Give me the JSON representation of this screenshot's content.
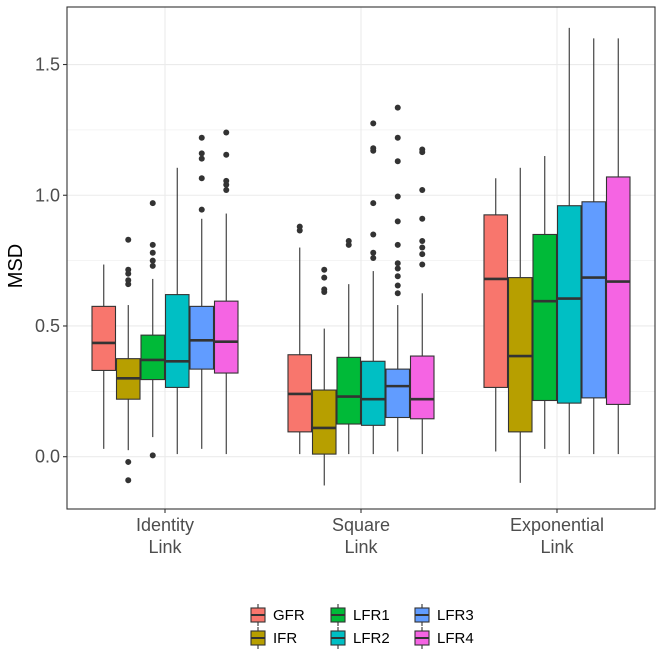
{
  "chart_data": {
    "type": "boxplot",
    "title": "",
    "xlabel": "",
    "ylabel": "MSD",
    "ylim": [
      -0.2,
      1.72
    ],
    "yticks": [
      0.0,
      0.5,
      1.0,
      1.5
    ],
    "ytick_labels": [
      "0.0",
      "0.5",
      "1.0",
      "1.5"
    ],
    "grid": true,
    "legend_position": "bottom",
    "categories": [
      {
        "line1": "Identity",
        "line2": "Link"
      },
      {
        "line1": "Square",
        "line2": "Link"
      },
      {
        "line1": "Exponential",
        "line2": "Link"
      }
    ],
    "series": [
      {
        "name": "GFR",
        "color": "#F8766D",
        "boxes": [
          {
            "whisker_low": 0.03,
            "q1": 0.33,
            "median": 0.435,
            "q3": 0.575,
            "whisker_high": 0.735,
            "outliers": []
          },
          {
            "whisker_low": 0.01,
            "q1": 0.095,
            "median": 0.24,
            "q3": 0.39,
            "whisker_high": 0.8,
            "outliers": [
              0.865,
              0.88
            ]
          },
          {
            "whisker_low": 0.02,
            "q1": 0.265,
            "median": 0.68,
            "q3": 0.925,
            "whisker_high": 1.065,
            "outliers": []
          }
        ]
      },
      {
        "name": "IFR",
        "color": "#B79F00",
        "boxes": [
          {
            "whisker_low": 0.025,
            "q1": 0.22,
            "median": 0.3,
            "q3": 0.375,
            "whisker_high": 0.58,
            "outliers": [
              -0.09,
              -0.02,
              0.66,
              0.675,
              0.7,
              0.715,
              0.83
            ]
          },
          {
            "whisker_low": -0.11,
            "q1": 0.01,
            "median": 0.11,
            "q3": 0.255,
            "whisker_high": 0.49,
            "outliers": [
              0.63,
              0.64,
              0.685,
              0.715
            ]
          },
          {
            "whisker_low": -0.1,
            "q1": 0.095,
            "median": 0.385,
            "q3": 0.685,
            "whisker_high": 1.105,
            "outliers": []
          }
        ]
      },
      {
        "name": "LFR1",
        "color": "#00BA38",
        "boxes": [
          {
            "whisker_low": 0.075,
            "q1": 0.295,
            "median": 0.37,
            "q3": 0.465,
            "whisker_high": 0.68,
            "outliers": [
              0.005,
              0.73,
              0.75,
              0.78,
              0.81,
              0.97
            ]
          },
          {
            "whisker_low": 0.01,
            "q1": 0.125,
            "median": 0.23,
            "q3": 0.38,
            "whisker_high": 0.66,
            "outliers": [
              0.81,
              0.825
            ]
          },
          {
            "whisker_low": 0.03,
            "q1": 0.215,
            "median": 0.595,
            "q3": 0.85,
            "whisker_high": 1.15,
            "outliers": []
          }
        ]
      },
      {
        "name": "LFR2",
        "color": "#00BFC4",
        "boxes": [
          {
            "whisker_low": 0.01,
            "q1": 0.265,
            "median": 0.365,
            "q3": 0.62,
            "whisker_high": 1.105,
            "outliers": []
          },
          {
            "whisker_low": 0.01,
            "q1": 0.12,
            "median": 0.22,
            "q3": 0.365,
            "whisker_high": 0.71,
            "outliers": [
              0.76,
              0.78,
              0.85,
              0.97,
              1.17,
              1.18,
              1.275
            ]
          },
          {
            "whisker_low": 0.01,
            "q1": 0.205,
            "median": 0.605,
            "q3": 0.96,
            "whisker_high": 1.64,
            "outliers": []
          }
        ]
      },
      {
        "name": "LFR3",
        "color": "#619CFF",
        "boxes": [
          {
            "whisker_low": 0.03,
            "q1": 0.335,
            "median": 0.445,
            "q3": 0.575,
            "whisker_high": 0.91,
            "outliers": [
              0.945,
              1.065,
              1.14,
              1.16,
              1.22
            ]
          },
          {
            "whisker_low": 0.02,
            "q1": 0.15,
            "median": 0.27,
            "q3": 0.335,
            "whisker_high": 0.58,
            "outliers": [
              0.625,
              0.655,
              0.69,
              0.72,
              0.74,
              0.81,
              0.9,
              0.995,
              1.13,
              1.22,
              1.335
            ]
          },
          {
            "whisker_low": 0.01,
            "q1": 0.225,
            "median": 0.685,
            "q3": 0.975,
            "whisker_high": 1.6,
            "outliers": []
          }
        ]
      },
      {
        "name": "LFR4",
        "color": "#F564E3",
        "boxes": [
          {
            "whisker_low": 0.01,
            "q1": 0.32,
            "median": 0.44,
            "q3": 0.595,
            "whisker_high": 0.93,
            "outliers": [
              1.02,
              1.04,
              1.055,
              1.155,
              1.24
            ]
          },
          {
            "whisker_low": 0.01,
            "q1": 0.145,
            "median": 0.22,
            "q3": 0.385,
            "whisker_high": 0.625,
            "outliers": [
              0.735,
              0.775,
              0.8,
              0.825,
              0.91,
              1.02,
              1.165,
              1.175
            ]
          },
          {
            "whisker_low": 0.01,
            "q1": 0.2,
            "median": 0.67,
            "q3": 1.07,
            "whisker_high": 1.6,
            "outliers": []
          }
        ]
      }
    ]
  }
}
